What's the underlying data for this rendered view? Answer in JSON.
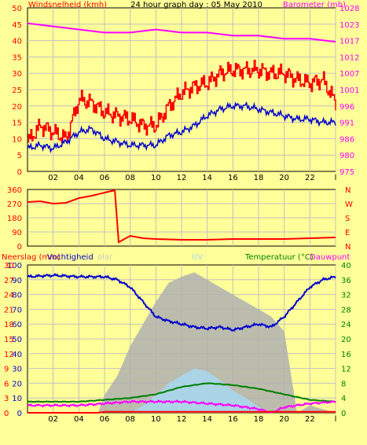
{
  "top": {
    "left_title": "Windsnelheid (kmh)",
    "center_title": "24 hour graph day : 05 May 2010",
    "right_title": "Barometer (mb)",
    "left_ticks": [
      "50",
      "45",
      "40",
      "35",
      "30",
      "25",
      "20",
      "15",
      "10",
      "5",
      "0"
    ],
    "right_ticks": [
      "1028",
      "1023",
      "1017",
      "1012",
      "1007",
      "1001",
      "996",
      "991",
      "986",
      "980",
      "975"
    ]
  },
  "mid": {
    "left_ticks": [
      "360",
      "270",
      "180",
      "90",
      "0"
    ],
    "right_letters": [
      "N",
      "W",
      "S",
      "E",
      "N"
    ]
  },
  "bottom": {
    "label_rain": "Neerslag (mm)",
    "label_hum": "Vochtigheid",
    "label_solar": "olar",
    "label_uv": "UV",
    "label_temp": "Temperatuur (°C)",
    "label_dew": "Dauwpunt",
    "left_hum_ticks": [
      "100",
      "90",
      "80",
      "70",
      "60",
      "50",
      "40",
      "30",
      "20",
      "10",
      "0"
    ],
    "left_rain_ticks": [
      "30",
      "27",
      "24",
      "21",
      "18",
      "15",
      "12",
      "9",
      "6",
      "3",
      "0"
    ],
    "right_temp_ticks": [
      "40",
      "36",
      "32",
      "28",
      "24",
      "20",
      "16",
      "12",
      "8",
      "4",
      "0"
    ]
  },
  "x_ticks": [
    "02",
    "04",
    "06",
    "08",
    "10",
    "12",
    "14",
    "16",
    "18",
    "20",
    "22",
    "l"
  ],
  "colors": {
    "background": "#ffff99",
    "grid": "#c0c0c0",
    "wind": "#ff0000",
    "wind_avg": "#0000cc",
    "pressure": "#ff00ff",
    "direction": "#ff0000",
    "humidity": "#0000cc",
    "solar": "#b0b0b0",
    "uv": "#a8d8f0",
    "temperature": "#008000",
    "dewpoint": "#ff00ff",
    "rain": "#ff0000",
    "title_left": "#ff0000",
    "title_right": "#ff00ff"
  },
  "chart_data": [
    {
      "type": "line",
      "title": "24 hour graph day : 05 May 2010",
      "xlim": [
        0,
        24
      ],
      "ylim": [
        0,
        50
      ],
      "y2lim": [
        975,
        1028
      ],
      "ylabel": "Windsnelheid (kmh)",
      "y2label": "Barometer (mb)",
      "series": [
        {
          "name": "",
          "axis": "y",
          "role": "gust",
          "x": [
            0,
            1,
            2,
            3,
            4,
            5,
            6,
            7,
            8,
            9,
            10,
            11,
            12,
            13,
            14,
            15,
            16,
            17,
            18,
            19,
            20,
            21,
            22,
            23,
            24
          ],
          "values": [
            9,
            14,
            12,
            10,
            22,
            21,
            18,
            17,
            16,
            14,
            14,
            20,
            24,
            26,
            27,
            30,
            31,
            31,
            31,
            30,
            30,
            28,
            27,
            28,
            21
          ]
        },
        {
          "name": "",
          "axis": "y",
          "role": "average",
          "x": [
            0,
            1,
            2,
            3,
            4,
            5,
            6,
            7,
            8,
            9,
            10,
            11,
            12,
            13,
            14,
            15,
            16,
            17,
            18,
            19,
            20,
            21,
            22,
            23,
            24
          ],
          "values": [
            7,
            8,
            7,
            9,
            12,
            13,
            10,
            9,
            8,
            8,
            8,
            11,
            12,
            14,
            17,
            19,
            20,
            20,
            19,
            18,
            17,
            16,
            16,
            15,
            15
          ]
        },
        {
          "name": "",
          "axis": "y2",
          "role": "pressure",
          "x": [
            0,
            2,
            4,
            6,
            8,
            10,
            12,
            14,
            16,
            18,
            20,
            22,
            24
          ],
          "values": [
            1023,
            1022,
            1021,
            1020,
            1020,
            1021,
            1020,
            1020,
            1019,
            1019,
            1018,
            1018,
            1017
          ]
        }
      ]
    },
    {
      "type": "line",
      "xlim": [
        0,
        24
      ],
      "ylim": [
        0,
        360
      ],
      "series": [
        {
          "name": "",
          "role": "direction",
          "x": [
            0,
            1,
            2,
            3,
            4,
            5,
            6,
            6.8,
            7.1,
            8,
            9,
            10,
            12,
            14,
            16,
            18,
            20,
            22,
            24
          ],
          "values": [
            280,
            285,
            270,
            275,
            305,
            320,
            340,
            355,
            25,
            65,
            50,
            45,
            40,
            40,
            45,
            45,
            45,
            50,
            55
          ]
        }
      ]
    },
    {
      "type": "area",
      "xlim": [
        0,
        24
      ],
      "ylim": [
        0,
        100
      ],
      "y2lim": [
        0,
        40
      ],
      "y3lim": [
        0,
        30
      ],
      "series": [
        {
          "name": "Vochtigheid",
          "axis": "y",
          "role": "humidity",
          "x": [
            0,
            2,
            4,
            6,
            7,
            8,
            9,
            10,
            11,
            12,
            13,
            14,
            15,
            16,
            17,
            18,
            19,
            20,
            21,
            22,
            23,
            24
          ],
          "values": [
            92,
            93,
            92,
            92,
            90,
            85,
            75,
            65,
            62,
            60,
            58,
            57,
            58,
            56,
            58,
            60,
            58,
            65,
            75,
            85,
            90,
            92
          ]
        },
        {
          "name": "olar",
          "axis": "y",
          "role": "solar",
          "x": [
            5.5,
            6,
            7,
            8,
            9,
            10,
            11,
            12,
            13,
            14,
            15,
            16,
            17,
            18,
            19,
            20,
            21,
            22,
            24
          ],
          "values": [
            0,
            12,
            25,
            45,
            60,
            75,
            88,
            92,
            95,
            90,
            85,
            80,
            75,
            70,
            65,
            55,
            0,
            5,
            0
          ]
        },
        {
          "name": "UV",
          "axis": "y",
          "role": "uv",
          "x": [
            8,
            9,
            10,
            11,
            12,
            13,
            14,
            15,
            16,
            17,
            18,
            19
          ],
          "values": [
            0,
            5,
            12,
            20,
            25,
            30,
            28,
            22,
            15,
            10,
            4,
            0
          ]
        },
        {
          "name": "Temperatuur (°C)",
          "axis": "y2",
          "role": "temperature",
          "x": [
            0,
            2,
            4,
            6,
            8,
            10,
            12,
            14,
            16,
            18,
            20,
            22,
            24
          ],
          "values": [
            3,
            3,
            3,
            3.5,
            4,
            5,
            7,
            8,
            7.5,
            6.5,
            5,
            3.5,
            3
          ]
        },
        {
          "name": "Dauwpunt",
          "axis": "y2",
          "role": "dewpoint",
          "x": [
            0,
            2,
            4,
            6,
            8,
            10,
            12,
            14,
            16,
            18,
            19,
            20,
            22,
            24
          ],
          "values": [
            2,
            2,
            2,
            2.5,
            3,
            3,
            3,
            2.5,
            2,
            1,
            0,
            1.5,
            2.5,
            3
          ]
        },
        {
          "name": "Neerslag (mm)",
          "axis": "y3",
          "role": "rain",
          "x": [
            0,
            5.5,
            6,
            24
          ],
          "values": [
            0,
            0,
            0.2,
            0.2
          ]
        }
      ]
    }
  ]
}
